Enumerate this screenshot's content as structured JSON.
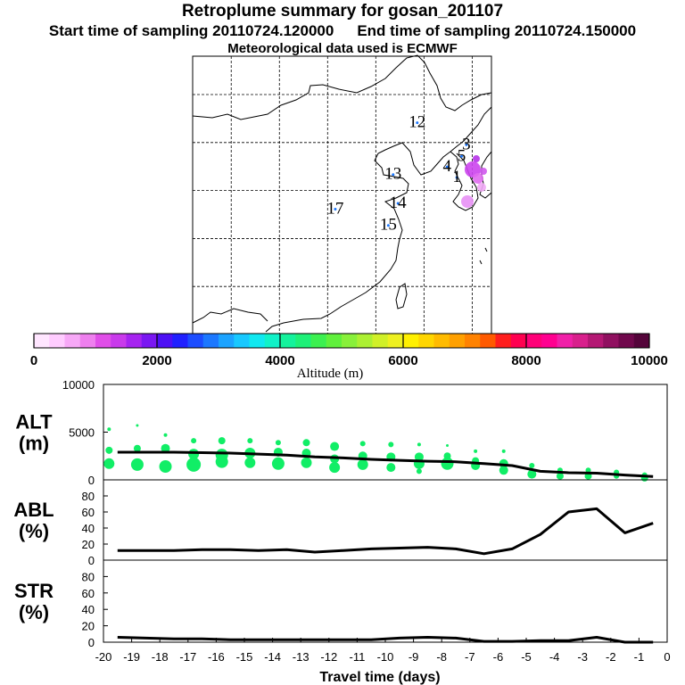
{
  "header": {
    "title": "Retroplume summary for gosan_201107",
    "start_label": "Start time of sampling 20110724.120000",
    "end_label": "End time of sampling 20110724.150000",
    "met_label": "Meteorological data used is ECMWF"
  },
  "map": {
    "trajectory_labels": [
      {
        "text": "12",
        "lon": 124.3,
        "lat": 41.6
      },
      {
        "text": "3",
        "lon": 129.4,
        "lat": 39.3
      },
      {
        "text": "5",
        "lon": 128.9,
        "lat": 38.1
      },
      {
        "text": "4",
        "lon": 127.4,
        "lat": 37.0
      },
      {
        "text": "1",
        "lon": 128.4,
        "lat": 35.9
      },
      {
        "text": "13",
        "lon": 121.8,
        "lat": 36.2
      },
      {
        "text": "14",
        "lon": 122.3,
        "lat": 33.2
      },
      {
        "text": "17",
        "lon": 115.8,
        "lat": 32.6
      },
      {
        "text": "15",
        "lon": 121.3,
        "lat": 30.9
      }
    ]
  },
  "colorbar": {
    "title": "Altitude (m)",
    "tick_labels": [
      "0",
      "2000",
      "4000",
      "6000",
      "8000",
      "10000"
    ],
    "colors": [
      "#ffe6ff",
      "#ffccff",
      "#f7a8f7",
      "#ee7fee",
      "#e04ee8",
      "#c93aeb",
      "#a623f0",
      "#7a17f2",
      "#4d10f5",
      "#2020ff",
      "#1c4dff",
      "#1c78ff",
      "#1ca3ff",
      "#18c8ff",
      "#10e8f0",
      "#10f2c8",
      "#14f29c",
      "#1ef078",
      "#3cf050",
      "#60f03c",
      "#88f03a",
      "#acf032",
      "#d0f028",
      "#eef020",
      "#fff000",
      "#ffd600",
      "#ffbb00",
      "#ffa000",
      "#ff8200",
      "#ff5a00",
      "#ff1e1e",
      "#ff0050",
      "#ff0078",
      "#ff0090",
      "#f020a8",
      "#d8208c",
      "#b41874",
      "#901060",
      "#70084c",
      "#54043a"
    ]
  },
  "chart_data": [
    {
      "type": "line",
      "name": "ALT",
      "ylabel": "ALT\n(m)",
      "ylim": [
        0,
        10000
      ],
      "y_ticks": [
        "10000",
        "5000",
        "0"
      ],
      "x": [
        -19.5,
        -18.5,
        -17.5,
        -16.5,
        -15.5,
        -14.5,
        -13.5,
        -12.5,
        -11.5,
        -10.5,
        -9.5,
        -8.5,
        -7.5,
        -6.5,
        -5.5,
        -4.5,
        -3.5,
        -2.5,
        -1.5,
        -0.5
      ],
      "values": [
        2900,
        2900,
        2900,
        2850,
        2800,
        2700,
        2600,
        2400,
        2300,
        2150,
        2050,
        1950,
        1900,
        1700,
        1500,
        900,
        750,
        700,
        500,
        350
      ],
      "scatter": [
        {
          "x": -19.8,
          "y": 5300,
          "r": 2
        },
        {
          "x": -19.8,
          "y": 3100,
          "r": 4
        },
        {
          "x": -19.8,
          "y": 1700,
          "r": 6
        },
        {
          "x": -18.8,
          "y": 5700,
          "r": 1.5
        },
        {
          "x": -18.8,
          "y": 3300,
          "r": 4
        },
        {
          "x": -18.8,
          "y": 1600,
          "r": 7
        },
        {
          "x": -17.8,
          "y": 4700,
          "r": 2
        },
        {
          "x": -17.8,
          "y": 3300,
          "r": 5
        },
        {
          "x": -17.8,
          "y": 1400,
          "r": 7
        },
        {
          "x": -16.8,
          "y": 4100,
          "r": 3
        },
        {
          "x": -16.8,
          "y": 2700,
          "r": 6
        },
        {
          "x": -16.8,
          "y": 1600,
          "r": 8
        },
        {
          "x": -15.8,
          "y": 4100,
          "r": 4
        },
        {
          "x": -15.8,
          "y": 2600,
          "r": 7
        },
        {
          "x": -15.8,
          "y": 1900,
          "r": 7
        },
        {
          "x": -14.8,
          "y": 4100,
          "r": 3
        },
        {
          "x": -14.8,
          "y": 2800,
          "r": 6
        },
        {
          "x": -14.8,
          "y": 1800,
          "r": 6
        },
        {
          "x": -13.8,
          "y": 3900,
          "r": 3
        },
        {
          "x": -13.8,
          "y": 2900,
          "r": 5
        },
        {
          "x": -13.8,
          "y": 1700,
          "r": 7
        },
        {
          "x": -12.8,
          "y": 3900,
          "r": 4
        },
        {
          "x": -12.8,
          "y": 2800,
          "r": 5
        },
        {
          "x": -12.8,
          "y": 1800,
          "r": 6
        },
        {
          "x": -11.8,
          "y": 3500,
          "r": 5
        },
        {
          "x": -11.8,
          "y": 2200,
          "r": 5
        },
        {
          "x": -11.8,
          "y": 1300,
          "r": 6
        },
        {
          "x": -10.8,
          "y": 3800,
          "r": 3
        },
        {
          "x": -10.8,
          "y": 2500,
          "r": 5
        },
        {
          "x": -10.8,
          "y": 1600,
          "r": 6
        },
        {
          "x": -9.8,
          "y": 3700,
          "r": 3
        },
        {
          "x": -9.8,
          "y": 2400,
          "r": 5
        },
        {
          "x": -9.8,
          "y": 1300,
          "r": 5
        },
        {
          "x": -8.8,
          "y": 3700,
          "r": 2
        },
        {
          "x": -8.8,
          "y": 2400,
          "r": 5
        },
        {
          "x": -8.8,
          "y": 1700,
          "r": 6
        },
        {
          "x": -8.8,
          "y": 900,
          "r": 3
        },
        {
          "x": -7.8,
          "y": 3600,
          "r": 1.5
        },
        {
          "x": -7.8,
          "y": 2500,
          "r": 4
        },
        {
          "x": -7.8,
          "y": 1700,
          "r": 7
        },
        {
          "x": -6.8,
          "y": 3000,
          "r": 2
        },
        {
          "x": -6.8,
          "y": 2000,
          "r": 4
        },
        {
          "x": -6.8,
          "y": 1500,
          "r": 5
        },
        {
          "x": -5.8,
          "y": 3000,
          "r": 2
        },
        {
          "x": -5.8,
          "y": 1700,
          "r": 5
        },
        {
          "x": -5.8,
          "y": 1000,
          "r": 5
        },
        {
          "x": -4.8,
          "y": 1500,
          "r": 3
        },
        {
          "x": -4.8,
          "y": 600,
          "r": 5
        },
        {
          "x": -3.8,
          "y": 1000,
          "r": 3
        },
        {
          "x": -3.8,
          "y": 400,
          "r": 4
        },
        {
          "x": -2.8,
          "y": 1000,
          "r": 3
        },
        {
          "x": -2.8,
          "y": 400,
          "r": 4
        },
        {
          "x": -1.8,
          "y": 800,
          "r": 3
        },
        {
          "x": -1.8,
          "y": 400,
          "r": 3
        },
        {
          "x": -0.8,
          "y": 500,
          "r": 3
        },
        {
          "x": -0.8,
          "y": 200,
          "r": 4
        }
      ]
    },
    {
      "type": "line",
      "name": "ABL",
      "ylabel": "ABL\n(%)",
      "ylim": [
        0,
        100
      ],
      "y_ticks": [
        "80",
        "60",
        "40",
        "20",
        "0"
      ],
      "x": [
        -19.5,
        -18.5,
        -17.5,
        -16.5,
        -15.5,
        -14.5,
        -13.5,
        -12.5,
        -11.5,
        -10.5,
        -9.5,
        -8.5,
        -7.5,
        -6.5,
        -5.5,
        -4.5,
        -3.5,
        -2.5,
        -1.5,
        -0.5
      ],
      "values": [
        12,
        12,
        12,
        13,
        13,
        12,
        13,
        10,
        12,
        14,
        15,
        16,
        14,
        8,
        14,
        32,
        60,
        64,
        34,
        46
      ]
    },
    {
      "type": "line",
      "name": "STR",
      "ylabel": "STR\n(%)",
      "ylim": [
        0,
        100
      ],
      "y_ticks": [
        "80",
        "60",
        "40",
        "20",
        "0"
      ],
      "x": [
        -19.5,
        -18.5,
        -17.5,
        -16.5,
        -15.5,
        -14.5,
        -13.5,
        -12.5,
        -11.5,
        -10.5,
        -9.5,
        -8.5,
        -7.5,
        -6.5,
        -5.5,
        -4.5,
        -3.5,
        -2.5,
        -1.5,
        -0.5
      ],
      "values": [
        6,
        5,
        4,
        4,
        3,
        3,
        3,
        3,
        3,
        3,
        5,
        6,
        5,
        1,
        1,
        2,
        2,
        6,
        0,
        0
      ]
    }
  ],
  "x_axis": {
    "xlim": [
      -20,
      0
    ],
    "xlabel": "Travel time (days)",
    "tick_labels": [
      "-20",
      "-19",
      "-18",
      "-17",
      "-16",
      "-15",
      "-14",
      "-13",
      "-12",
      "-11",
      "-10",
      "-9",
      "-8",
      "-7",
      "-6",
      "-5",
      "-4",
      "-3",
      "-2",
      "-1",
      "0"
    ]
  },
  "styles": {
    "scatter_color": "#11ee66",
    "line_color": "#000000"
  }
}
